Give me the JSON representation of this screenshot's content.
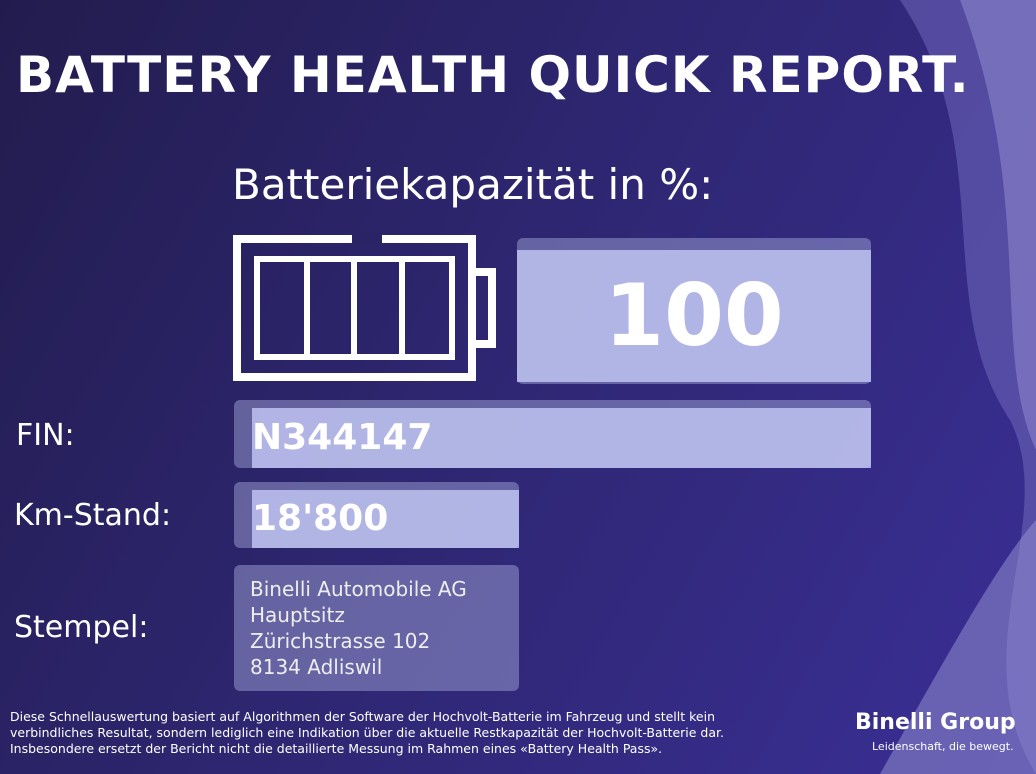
{
  "header": {
    "title": "BATTERY HEALTH QUICK REPORT."
  },
  "capacity": {
    "label": "Batteriekapazität in %:",
    "value": "100"
  },
  "fields": [
    {
      "label": "FIN:",
      "value": "N344147"
    },
    {
      "label": "Km-Stand:",
      "value": "18'800"
    }
  ],
  "stamp": {
    "label": "Stempel:",
    "lines": [
      "Binelli Automobile AG",
      "Hauptsitz",
      "Zürichstrasse 102",
      "8134 Adliswil"
    ]
  },
  "footer": {
    "disclaimer": [
      "Diese Schnellauswertung basiert auf Algorithmen der Software der Hochvolt-Batterie im Fahrzeug und stellt kein",
      "verbindliches Resultat, sondern lediglich eine Indikation über die aktuelle Restkapazität der Hochvolt-Batterie dar.",
      "Insbesondere ersetzt der Bericht nicht die detaillierte Messung im Rahmen eines «Battery Health Pass»."
    ],
    "brand": "Binelli Group",
    "slogan": "Leidenschaft, die bewegt."
  }
}
